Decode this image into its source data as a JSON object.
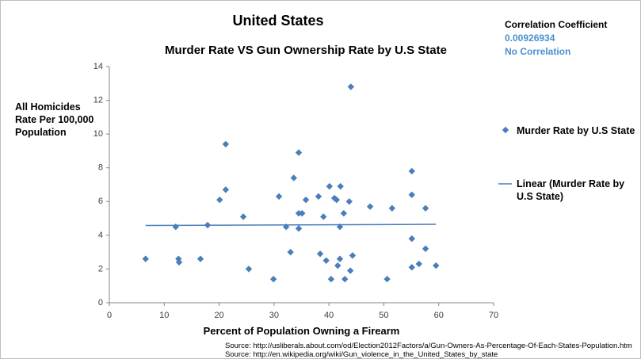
{
  "chart_data": {
    "type": "scatter",
    "title": "United States",
    "subtitle": "Murder Rate VS Gun Ownership Rate by U.S State",
    "y_label": "All Homicides Rate Per 100,000 Population",
    "x_label": "Percent of Population Owning a Firearm",
    "annotations": {
      "heading": "Correlation Coefficient",
      "coefficient": "0.00926934",
      "verdict": "No Correlation"
    },
    "sources": [
      "Source: http://usliberals.about.com/od/Election2012Factors/a/Gun-Owners-As-Percentage-Of-Each-States-Population.htm",
      "Source: http://en.wikipedia.org/wiki/Gun_violence_in_the_United_States_by_state"
    ],
    "xlim": [
      0,
      70
    ],
    "xticks": [
      0,
      10,
      20,
      30,
      40,
      50,
      60,
      70
    ],
    "ylim": [
      0,
      14
    ],
    "yticks": [
      0,
      2,
      4,
      6,
      8,
      10,
      12,
      14
    ],
    "grid": false,
    "legend": "right",
    "series": [
      {
        "name": "Murder Rate by U.S State",
        "color": "#4a7ebb",
        "kind": "points",
        "x": [
          6.6,
          12.1,
          12.6,
          12.7,
          16.6,
          17.9,
          20.1,
          21.2,
          21.2,
          24.4,
          25.4,
          29.9,
          30.9,
          32.2,
          33.0,
          33.6,
          34.5,
          34.5,
          34.5,
          35.1,
          35.8,
          38.1,
          38.4,
          39.0,
          39.5,
          40.1,
          40.4,
          41.0,
          41.4,
          41.6,
          42.0,
          42.0,
          42.1,
          42.7,
          42.9,
          43.7,
          43.9,
          44.0,
          44.3,
          47.5,
          50.6,
          51.5,
          55.1,
          55.1,
          55.1,
          55.1,
          56.4,
          57.6,
          57.6,
          59.5
        ],
        "values": [
          2.6,
          4.5,
          2.6,
          2.4,
          2.6,
          4.6,
          6.1,
          6.7,
          9.4,
          5.1,
          2.0,
          1.4,
          6.3,
          4.5,
          3.0,
          7.4,
          8.9,
          5.3,
          4.4,
          5.3,
          6.1,
          6.3,
          2.9,
          5.1,
          2.5,
          6.9,
          1.4,
          6.2,
          6.1,
          2.2,
          2.6,
          4.5,
          6.9,
          5.3,
          1.4,
          6.0,
          1.9,
          12.8,
          2.8,
          5.7,
          1.4,
          5.6,
          7.8,
          6.4,
          3.8,
          2.1,
          2.3,
          5.6,
          3.2,
          2.2
        ]
      },
      {
        "name": "Linear (Murder Rate by U.S State)",
        "color": "#4a7ebb",
        "kind": "line",
        "x": [
          6.6,
          59.5
        ],
        "values": [
          4.58,
          4.65
        ]
      }
    ]
  }
}
